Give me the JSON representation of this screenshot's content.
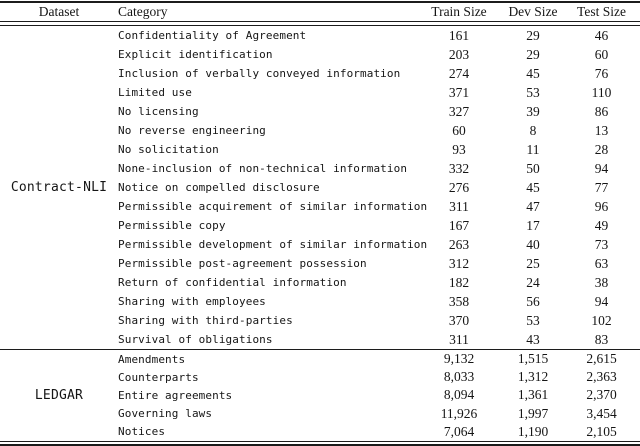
{
  "page": {
    "background_color": "#ffffff",
    "text_color": "#151515",
    "rule_color": "#1c1c1c"
  },
  "table": {
    "headers": {
      "dataset": "Dataset",
      "category": "Category",
      "train": "Train Size",
      "dev": "Dev Size",
      "test": "Test Size"
    },
    "sections": [
      {
        "dataset": "Contract-NLI",
        "rows": [
          {
            "category": "Confidentiality of Agreement",
            "train": "161",
            "dev": "29",
            "test": "46"
          },
          {
            "category": "Explicit identification",
            "train": "203",
            "dev": "29",
            "test": "60"
          },
          {
            "category": "Inclusion of verbally conveyed information",
            "train": "274",
            "dev": "45",
            "test": "76"
          },
          {
            "category": "Limited use",
            "train": "371",
            "dev": "53",
            "test": "110"
          },
          {
            "category": "No licensing",
            "train": "327",
            "dev": "39",
            "test": "86"
          },
          {
            "category": "No reverse engineering",
            "train": "60",
            "dev": "8",
            "test": "13"
          },
          {
            "category": "No solicitation",
            "train": "93",
            "dev": "11",
            "test": "28"
          },
          {
            "category": "None-inclusion of non-technical information",
            "train": "332",
            "dev": "50",
            "test": "94"
          },
          {
            "category": "Notice on compelled disclosure",
            "train": "276",
            "dev": "45",
            "test": "77"
          },
          {
            "category": "Permissible acquirement of similar information",
            "train": "311",
            "dev": "47",
            "test": "96"
          },
          {
            "category": "Permissible copy",
            "train": "167",
            "dev": "17",
            "test": "49"
          },
          {
            "category": "Permissible development of similar information",
            "train": "263",
            "dev": "40",
            "test": "73"
          },
          {
            "category": "Permissible post-agreement possession",
            "train": "312",
            "dev": "25",
            "test": "63"
          },
          {
            "category": "Return of confidential information",
            "train": "182",
            "dev": "24",
            "test": "38"
          },
          {
            "category": "Sharing with employees",
            "train": "358",
            "dev": "56",
            "test": "94"
          },
          {
            "category": "Sharing with third-parties",
            "train": "370",
            "dev": "53",
            "test": "102"
          },
          {
            "category": "Survival of obligations",
            "train": "311",
            "dev": "43",
            "test": "83"
          }
        ]
      },
      {
        "dataset": "LEDGAR",
        "rows": [
          {
            "category": "Amendments",
            "train": "9,132",
            "dev": "1,515",
            "test": "2,615"
          },
          {
            "category": "Counterparts",
            "train": "8,033",
            "dev": "1,312",
            "test": "2,363"
          },
          {
            "category": "Entire agreements",
            "train": "8,094",
            "dev": "1,361",
            "test": "2,370"
          },
          {
            "category": "Governing laws",
            "train": "11,926",
            "dev": "1,997",
            "test": "3,454"
          },
          {
            "category": "Notices",
            "train": "7,064",
            "dev": "1,190",
            "test": "2,105"
          }
        ]
      }
    ]
  }
}
